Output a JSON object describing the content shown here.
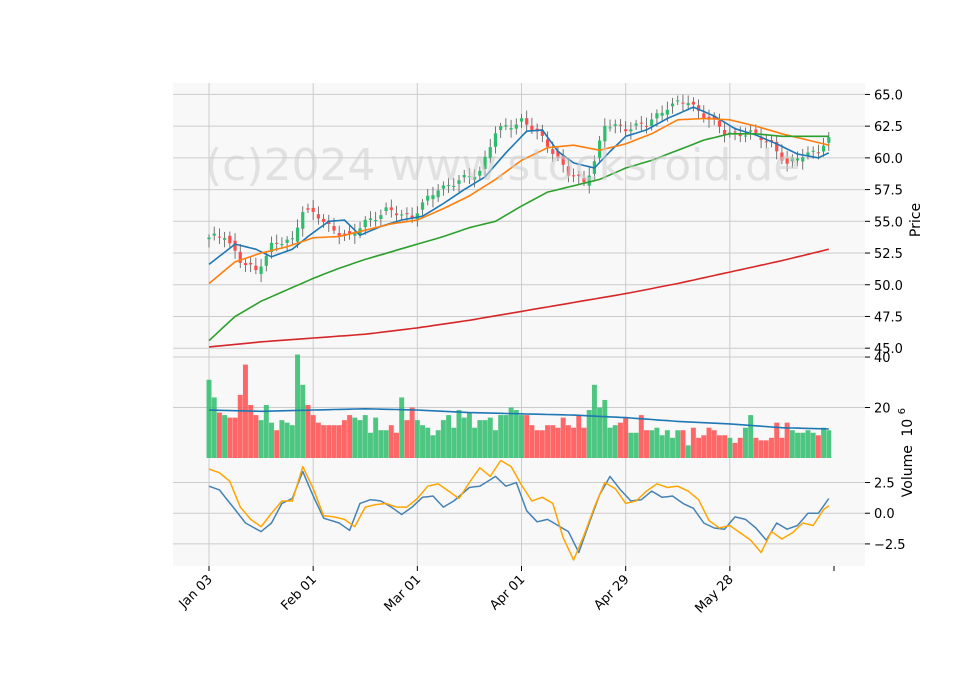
{
  "watermark": "(c)2024 www.stocksroid.de",
  "chart_data": {
    "type": "candlestick",
    "x_tick_labels": [
      "Jan 03",
      "Feb 01",
      "Mar 01",
      "Apr 01",
      "Apr 29",
      "May 28"
    ],
    "x_tick_index": [
      0,
      20,
      40,
      60,
      80,
      100
    ],
    "n_days": 120,
    "price_panel": {
      "ylabel": "Price",
      "ylim": [
        44.7,
        65.9
      ],
      "yticks": [
        45.0,
        47.5,
        50.0,
        52.5,
        55.0,
        57.5,
        60.0,
        62.5,
        65.0
      ],
      "ytick_labels": [
        "45.0",
        "47.5",
        "50.0",
        "52.5",
        "55.0",
        "57.5",
        "60.0",
        "62.5",
        "65.0"
      ],
      "close_keypoints": [
        [
          0,
          53.6
        ],
        [
          3,
          54.0
        ],
        [
          6,
          51.8
        ],
        [
          9,
          51.1
        ],
        [
          12,
          53.1
        ],
        [
          16,
          53.5
        ],
        [
          18,
          56.0
        ],
        [
          21,
          55.3
        ],
        [
          23,
          54.6
        ],
        [
          27,
          53.7
        ],
        [
          30,
          55.0
        ],
        [
          34,
          55.8
        ],
        [
          39,
          55.4
        ],
        [
          44,
          57.6
        ],
        [
          49,
          58.3
        ],
        [
          52,
          59.0
        ],
        [
          55,
          62.0
        ],
        [
          60,
          63.0
        ],
        [
          63,
          61.9
        ],
        [
          66,
          60.6
        ],
        [
          69,
          58.7
        ],
        [
          72,
          58.1
        ],
        [
          74,
          59.8
        ],
        [
          76,
          62.5
        ],
        [
          80,
          62.4
        ],
        [
          84,
          62.6
        ],
        [
          88,
          64.1
        ],
        [
          92,
          64.4
        ],
        [
          95,
          63.4
        ],
        [
          99,
          62.0
        ],
        [
          104,
          61.9
        ],
        [
          108,
          61.2
        ],
        [
          111,
          59.4
        ],
        [
          114,
          60.3
        ],
        [
          117,
          60.6
        ],
        [
          119,
          61.3
        ]
      ],
      "moving_averages": [
        {
          "color": "#1f77b4",
          "kp": [
            [
              0,
              51.6
            ],
            [
              5,
              53.2
            ],
            [
              9,
              52.8
            ],
            [
              12,
              52.2
            ],
            [
              16,
              52.8
            ],
            [
              19,
              53.8
            ],
            [
              23,
              55.0
            ],
            [
              26,
              55.1
            ],
            [
              29,
              53.9
            ],
            [
              33,
              54.6
            ],
            [
              37,
              55.1
            ],
            [
              41,
              55.4
            ],
            [
              45,
              56.4
            ],
            [
              49,
              57.5
            ],
            [
              53,
              58.5
            ],
            [
              57,
              60.4
            ],
            [
              61,
              62.1
            ],
            [
              64,
              62.2
            ],
            [
              67,
              60.5
            ],
            [
              70,
              59.6
            ],
            [
              74,
              59.2
            ],
            [
              77,
              60.5
            ],
            [
              80,
              61.7
            ],
            [
              84,
              62.2
            ],
            [
              88,
              63.1
            ],
            [
              93,
              64.0
            ],
            [
              97,
              63.3
            ],
            [
              101,
              62.3
            ],
            [
              105,
              61.8
            ],
            [
              109,
              61.1
            ],
            [
              113,
              60.3
            ],
            [
              117,
              60.0
            ],
            [
              119,
              60.4
            ]
          ]
        },
        {
          "color": "#ff7f0e",
          "kp": [
            [
              0,
              50.1
            ],
            [
              5,
              51.8
            ],
            [
              10,
              52.5
            ],
            [
              15,
              53.0
            ],
            [
              20,
              53.7
            ],
            [
              25,
              53.8
            ],
            [
              30,
              54.3
            ],
            [
              35,
              54.8
            ],
            [
              40,
              55.1
            ],
            [
              45,
              56.0
            ],
            [
              50,
              57.0
            ],
            [
              55,
              58.3
            ],
            [
              60,
              59.8
            ],
            [
              65,
              60.8
            ],
            [
              70,
              61.0
            ],
            [
              75,
              60.6
            ],
            [
              80,
              61.1
            ],
            [
              85,
              61.9
            ],
            [
              90,
              63.0
            ],
            [
              95,
              63.1
            ],
            [
              100,
              63.0
            ],
            [
              105,
              62.5
            ],
            [
              110,
              61.9
            ],
            [
              115,
              61.4
            ],
            [
              119,
              61.0
            ]
          ]
        },
        {
          "color": "#2ca02c",
          "kp": [
            [
              0,
              45.6
            ],
            [
              5,
              47.5
            ],
            [
              10,
              48.7
            ],
            [
              15,
              49.6
            ],
            [
              20,
              50.5
            ],
            [
              25,
              51.3
            ],
            [
              30,
              52.0
            ],
            [
              35,
              52.6
            ],
            [
              40,
              53.2
            ],
            [
              45,
              53.8
            ],
            [
              50,
              54.5
            ],
            [
              55,
              55.0
            ],
            [
              60,
              56.2
            ],
            [
              65,
              57.3
            ],
            [
              70,
              57.8
            ],
            [
              75,
              58.3
            ],
            [
              80,
              59.2
            ],
            [
              85,
              59.8
            ],
            [
              90,
              60.6
            ],
            [
              95,
              61.4
            ],
            [
              100,
              61.9
            ],
            [
              105,
              61.9
            ],
            [
              110,
              61.7
            ],
            [
              115,
              61.7
            ],
            [
              119,
              61.7
            ]
          ]
        },
        {
          "color": "#d62728",
          "kp": [
            [
              0,
              45.1
            ],
            [
              10,
              45.5
            ],
            [
              20,
              45.8
            ],
            [
              30,
              46.1
            ],
            [
              40,
              46.6
            ],
            [
              50,
              47.2
            ],
            [
              60,
              47.9
            ],
            [
              70,
              48.6
            ],
            [
              80,
              49.3
            ],
            [
              90,
              50.1
            ],
            [
              100,
              51.0
            ],
            [
              110,
              51.9
            ],
            [
              119,
              52.8
            ]
          ]
        }
      ],
      "up_color": "#2ebd6b",
      "down_color": "#ff4d4d"
    },
    "volume_panel": {
      "ylabel": "Volume",
      "ylabel_exponent": "10",
      "ylabel_exponent_power": "6",
      "ylim": [
        0,
        42
      ],
      "yticks": [
        20,
        40
      ],
      "ytick_labels": [
        "20",
        "40"
      ],
      "values_millions": [
        31,
        24,
        18,
        17,
        16,
        16,
        25,
        37,
        21,
        17,
        15,
        21,
        14,
        11,
        15,
        14,
        13,
        41,
        29,
        21,
        17,
        14,
        13,
        13,
        13,
        13,
        15,
        17,
        16,
        15,
        17,
        10,
        16,
        11,
        11,
        13,
        10,
        24,
        15,
        20,
        15,
        13,
        12,
        9,
        11,
        15,
        17,
        12,
        19,
        16,
        18,
        12,
        15,
        15,
        16,
        11,
        17,
        17,
        20,
        19,
        17,
        17,
        13,
        11,
        11,
        13,
        13,
        12,
        16,
        13,
        12,
        17,
        12,
        19,
        29,
        20,
        23,
        12,
        13,
        14,
        16,
        10,
        10,
        17,
        11,
        11,
        12,
        9,
        11,
        8,
        11,
        11,
        5,
        12,
        8,
        9,
        12,
        11,
        9,
        9,
        8,
        6,
        8,
        12,
        17,
        8,
        7,
        7,
        8,
        14,
        8,
        14,
        11,
        10,
        10,
        11,
        10,
        9,
        12,
        11
      ],
      "ma_kp": [
        [
          0,
          19
        ],
        [
          10,
          18.5
        ],
        [
          20,
          19
        ],
        [
          30,
          19.5
        ],
        [
          40,
          19
        ],
        [
          50,
          18
        ],
        [
          60,
          17.5
        ],
        [
          70,
          17
        ],
        [
          80,
          16
        ],
        [
          90,
          14.5
        ],
        [
          100,
          13.5
        ],
        [
          110,
          12
        ],
        [
          119,
          11.5
        ]
      ],
      "ma_color": "#1f77b4"
    },
    "indicator_panel": {
      "ylim": [
        -4.3,
        4.5
      ],
      "yticks": [
        -2.5,
        0.0,
        2.5
      ],
      "ytick_labels": [
        "−2.5",
        "0.0",
        "2.5"
      ],
      "series": [
        {
          "color": "#4682b4",
          "kp": [
            [
              0,
              2.2
            ],
            [
              2,
              1.9
            ],
            [
              5,
              0.3
            ],
            [
              7,
              -0.8
            ],
            [
              10,
              -1.5
            ],
            [
              12,
              -0.8
            ],
            [
              14,
              0.8
            ],
            [
              16,
              1.2
            ],
            [
              18,
              3.4
            ],
            [
              20,
              1.4
            ],
            [
              22,
              -0.4
            ],
            [
              25,
              -0.8
            ],
            [
              27,
              -1.4
            ],
            [
              29,
              0.8
            ],
            [
              31,
              1.1
            ],
            [
              33,
              1.0
            ],
            [
              35,
              0.5
            ],
            [
              37,
              -0.1
            ],
            [
              39,
              0.5
            ],
            [
              41,
              1.3
            ],
            [
              43,
              1.4
            ],
            [
              45,
              0.5
            ],
            [
              47,
              1.0
            ],
            [
              50,
              2.1
            ],
            [
              52,
              2.2
            ],
            [
              55,
              3.0
            ],
            [
              57,
              2.2
            ],
            [
              59,
              2.5
            ],
            [
              61,
              0.2
            ],
            [
              63,
              -0.7
            ],
            [
              65,
              -0.5
            ],
            [
              67,
              -1.0
            ],
            [
              69,
              -1.5
            ],
            [
              71,
              -3.2
            ],
            [
              73,
              -0.8
            ],
            [
              75,
              1.5
            ],
            [
              77,
              3.0
            ],
            [
              79,
              1.9
            ],
            [
              81,
              1.0
            ],
            [
              83,
              1.1
            ],
            [
              85,
              1.8
            ],
            [
              87,
              1.3
            ],
            [
              89,
              1.4
            ],
            [
              91,
              0.8
            ],
            [
              93,
              0.4
            ],
            [
              95,
              -0.8
            ],
            [
              97,
              -1.2
            ],
            [
              99,
              -1.3
            ],
            [
              101,
              -0.3
            ],
            [
              103,
              -0.5
            ],
            [
              105,
              -1.2
            ],
            [
              107,
              -2.2
            ],
            [
              109,
              -0.8
            ],
            [
              111,
              -1.3
            ],
            [
              113,
              -1.0
            ],
            [
              115,
              0.0
            ],
            [
              117,
              0.0
            ],
            [
              119,
              1.2
            ]
          ]
        },
        {
          "color": "#ffa500",
          "kp": [
            [
              0,
              3.6
            ],
            [
              2,
              3.3
            ],
            [
              4,
              2.6
            ],
            [
              6,
              0.5
            ],
            [
              8,
              -0.5
            ],
            [
              10,
              -1.1
            ],
            [
              12,
              0.0
            ],
            [
              14,
              1.0
            ],
            [
              16,
              1.0
            ],
            [
              18,
              3.8
            ],
            [
              20,
              2.0
            ],
            [
              22,
              -0.2
            ],
            [
              24,
              -0.3
            ],
            [
              26,
              -0.5
            ],
            [
              28,
              -1.1
            ],
            [
              30,
              0.5
            ],
            [
              32,
              0.7
            ],
            [
              34,
              0.8
            ],
            [
              36,
              0.5
            ],
            [
              38,
              0.5
            ],
            [
              40,
              1.2
            ],
            [
              42,
              2.2
            ],
            [
              44,
              2.4
            ],
            [
              46,
              1.8
            ],
            [
              48,
              1.2
            ],
            [
              50,
              2.5
            ],
            [
              52,
              3.7
            ],
            [
              54,
              3.0
            ],
            [
              56,
              4.3
            ],
            [
              58,
              3.8
            ],
            [
              60,
              2.3
            ],
            [
              62,
              1.0
            ],
            [
              64,
              1.3
            ],
            [
              66,
              0.8
            ],
            [
              68,
              -2.0
            ],
            [
              70,
              -3.8
            ],
            [
              72,
              -1.8
            ],
            [
              74,
              0.5
            ],
            [
              76,
              2.5
            ],
            [
              78,
              2.0
            ],
            [
              80,
              0.8
            ],
            [
              82,
              1.0
            ],
            [
              84,
              1.8
            ],
            [
              86,
              2.4
            ],
            [
              88,
              2.1
            ],
            [
              90,
              2.2
            ],
            [
              92,
              1.8
            ],
            [
              94,
              1.1
            ],
            [
              96,
              -0.6
            ],
            [
              98,
              -1.2
            ],
            [
              100,
              -1.0
            ],
            [
              102,
              -1.6
            ],
            [
              104,
              -2.2
            ],
            [
              106,
              -3.2
            ],
            [
              108,
              -1.5
            ],
            [
              110,
              -2.1
            ],
            [
              112,
              -1.6
            ],
            [
              114,
              -0.8
            ],
            [
              116,
              -1.0
            ],
            [
              118,
              0.3
            ],
            [
              119,
              0.6
            ]
          ]
        }
      ]
    }
  }
}
